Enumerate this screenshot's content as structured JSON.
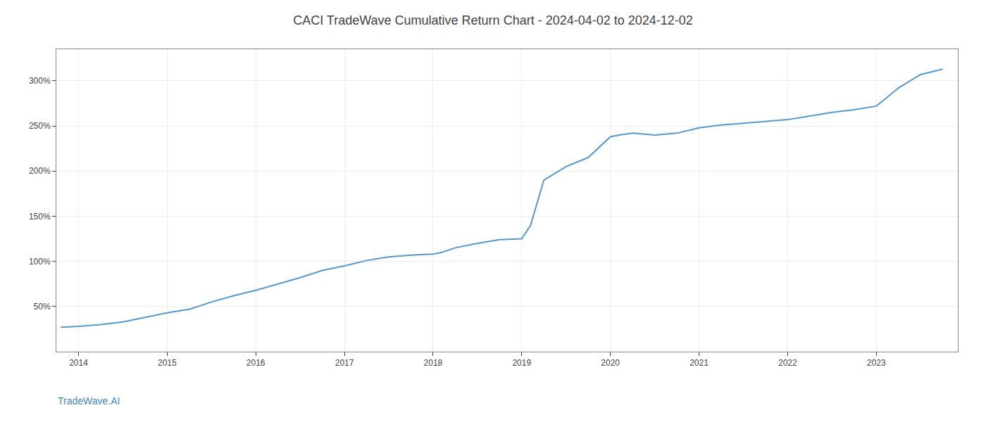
{
  "chart_data": {
    "type": "line",
    "title": "CACI TradeWave Cumulative Return Chart - 2024-04-02 to 2024-12-02",
    "annotations": [
      {
        "text": "TradeWave.AI"
      }
    ],
    "x": [
      2013.8,
      2014.0,
      2014.25,
      2014.5,
      2014.75,
      2015.0,
      2015.25,
      2015.5,
      2015.75,
      2016.0,
      2016.25,
      2016.5,
      2016.75,
      2017.0,
      2017.25,
      2017.5,
      2017.75,
      2018.0,
      2018.1,
      2018.25,
      2018.5,
      2018.75,
      2019.0,
      2019.1,
      2019.25,
      2019.5,
      2019.75,
      2020.0,
      2020.1,
      2020.25,
      2020.5,
      2020.75,
      2021.0,
      2021.25,
      2021.5,
      2021.75,
      2022.0,
      2022.25,
      2022.5,
      2022.75,
      2023.0,
      2023.25,
      2023.5,
      2023.75
    ],
    "values": [
      27,
      28,
      30,
      33,
      38,
      43,
      47,
      55,
      62,
      68,
      75,
      82,
      90,
      95,
      101,
      105,
      107,
      108,
      110,
      115,
      120,
      124,
      125,
      140,
      190,
      205,
      215,
      238,
      240,
      242,
      240,
      242,
      248,
      251,
      253,
      255,
      257,
      261,
      265,
      268,
      272,
      292,
      307,
      313
    ],
    "color": "#5599cc",
    "xlim": [
      2013.75,
      2023.92
    ],
    "xticks": [
      2014,
      2015,
      2016,
      2017,
      2018,
      2019,
      2020,
      2021,
      2022,
      2023
    ],
    "ylim": [
      0,
      335
    ],
    "yticks": [
      {
        "value": 50,
        "label": "50%"
      },
      {
        "value": 100,
        "label": "100%"
      },
      {
        "value": 150,
        "label": "150%"
      },
      {
        "value": 200,
        "label": "200%"
      },
      {
        "value": 250,
        "label": "250%"
      },
      {
        "value": 300,
        "label": "300%"
      }
    ],
    "grid": true
  }
}
